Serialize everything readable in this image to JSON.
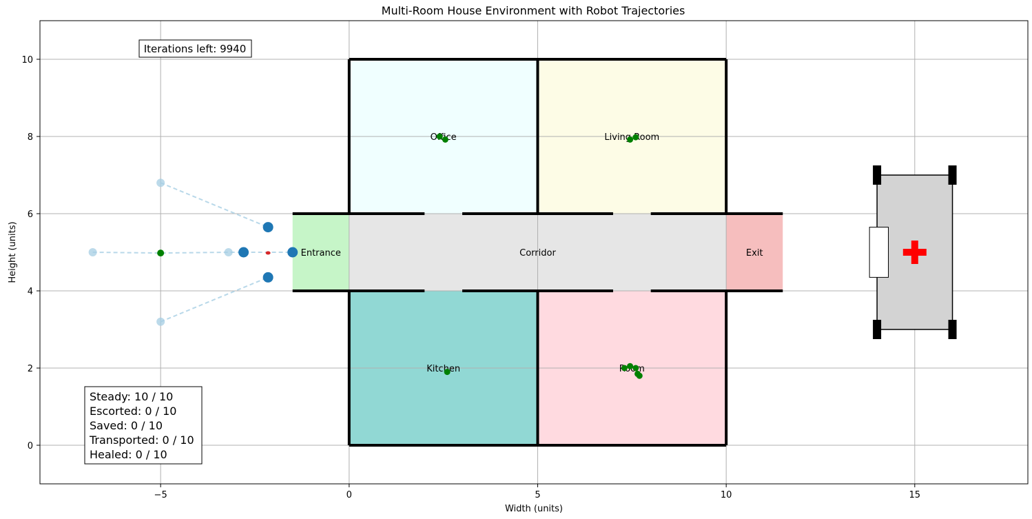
{
  "chart_data": {
    "type": "scatter",
    "title": "Multi-Room House Environment with Robot Trajectories",
    "xlabel": "Width (units)",
    "ylabel": "Height (units)",
    "xlim": [
      -8.2,
      18
    ],
    "ylim": [
      -1,
      11
    ],
    "grid": true,
    "x_ticks": [
      -5,
      0,
      5,
      10,
      15
    ],
    "y_ticks": [
      0,
      2,
      4,
      6,
      8,
      10
    ],
    "rooms": [
      {
        "name": "Office",
        "x": [
          0,
          5
        ],
        "y": [
          6,
          10
        ],
        "color": "#f0ffff",
        "label_at": [
          2.5,
          8
        ]
      },
      {
        "name": "Living Room",
        "x": [
          5,
          10
        ],
        "y": [
          6,
          10
        ],
        "color": "#fdfce6",
        "label_at": [
          7.5,
          8
        ]
      },
      {
        "name": "Kitchen",
        "x": [
          0,
          5
        ],
        "y": [
          0,
          4
        ],
        "color": "#91d8d4",
        "label_at": [
          2.5,
          2
        ]
      },
      {
        "name": "Room",
        "x": [
          5,
          10
        ],
        "y": [
          0,
          4
        ],
        "color": "#ffdae0",
        "label_at": [
          7.5,
          2
        ]
      },
      {
        "name": "Corridor",
        "x": [
          0,
          10
        ],
        "y": [
          4,
          6
        ],
        "color": "#e6e6e6",
        "label_at": [
          5,
          5
        ]
      },
      {
        "name": "Entrance",
        "x": [
          -1.5,
          0
        ],
        "y": [
          4,
          6
        ],
        "color": "#c6f5c8",
        "label_at": [
          -0.75,
          5
        ]
      },
      {
        "name": "Exit",
        "x": [
          10,
          11.5
        ],
        "y": [
          4,
          6
        ],
        "color": "#f6bebe",
        "label_at": [
          10.75,
          5
        ]
      }
    ],
    "walls": [
      [
        [
          0,
          10
        ],
        [
          10,
          10
        ]
      ],
      [
        [
          0,
          0
        ],
        [
          10,
          0
        ]
      ],
      [
        [
          0,
          0
        ],
        [
          0,
          4
        ]
      ],
      [
        [
          0,
          6
        ],
        [
          0,
          10
        ]
      ],
      [
        [
          5,
          0
        ],
        [
          5,
          4
        ]
      ],
      [
        [
          5,
          6
        ],
        [
          5,
          10
        ]
      ],
      [
        [
          10,
          0
        ],
        [
          10,
          4
        ]
      ],
      [
        [
          10,
          6
        ],
        [
          10,
          10
        ]
      ],
      [
        [
          -1.5,
          6
        ],
        [
          2,
          6
        ]
      ],
      [
        [
          3,
          6
        ],
        [
          7,
          6
        ]
      ],
      [
        [
          8,
          6
        ],
        [
          11.5,
          6
        ]
      ],
      [
        [
          -1.5,
          4
        ],
        [
          2,
          4
        ]
      ],
      [
        [
          3,
          4
        ],
        [
          7,
          4
        ]
      ],
      [
        [
          8,
          4
        ],
        [
          11.5,
          4
        ]
      ]
    ],
    "trajectories": [
      {
        "path": [
          [
            -5,
            6.8
          ],
          [
            -2.15,
            5.65
          ]
        ],
        "start": [
          -5,
          6.8
        ],
        "end": [
          -2.15,
          5.65
        ]
      },
      {
        "path": [
          [
            -6.8,
            5
          ],
          [
            -5,
            4.98
          ],
          [
            -3.2,
            5
          ],
          [
            -1.5,
            5
          ]
        ],
        "start": [
          -6.8,
          5
        ],
        "end": [
          -1.5,
          5
        ]
      },
      {
        "path": [
          [
            -5,
            3.2
          ],
          [
            -2.15,
            4.35
          ]
        ],
        "start": [
          -5,
          3.2
        ],
        "end": [
          -2.15,
          4.35
        ]
      }
    ],
    "intermediate_points": [
      [
        -3.2,
        5
      ]
    ],
    "robots": [
      [
        -2.8,
        5
      ]
    ],
    "leader_marker": [
      -5,
      4.98
    ],
    "red_marker": [
      -2.15,
      5
    ],
    "people": [
      [
        2.4,
        8.0
      ],
      [
        2.55,
        7.92
      ],
      [
        7.45,
        7.92
      ],
      [
        7.6,
        7.98
      ],
      [
        2.6,
        1.9
      ],
      [
        7.3,
        2.0
      ],
      [
        7.45,
        2.05
      ],
      [
        7.6,
        2.0
      ],
      [
        7.65,
        1.85
      ],
      [
        7.7,
        1.8
      ]
    ],
    "ambulance": {
      "body_x": [
        14,
        16
      ],
      "body_y": [
        3,
        7
      ],
      "door_x": [
        13.8,
        14.3
      ],
      "door_y": [
        4.35,
        5.65
      ],
      "cross_at": [
        15,
        5
      ],
      "color": "#d3d3d3",
      "cross_color": "#ff0000"
    },
    "iterations_text": "Iterations left: 9940",
    "status_lines": [
      "Steady: 10 / 10",
      "Escorted: 0 / 10",
      "Saved: 0 / 10",
      "Transported: 0 / 10",
      "Healed: 0 / 10"
    ],
    "colors": {
      "trajectory": "#a6cee3",
      "start": "#a6cee3",
      "end": "#1f77b4",
      "people": "#008000",
      "red": "#d62728",
      "wall": "#000000",
      "grid": "#b0b0b0"
    }
  }
}
